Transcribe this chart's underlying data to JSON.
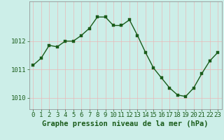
{
  "x": [
    0,
    1,
    2,
    3,
    4,
    5,
    6,
    7,
    8,
    9,
    10,
    11,
    12,
    13,
    14,
    15,
    16,
    17,
    18,
    19,
    20,
    21,
    22,
    23
  ],
  "y": [
    1011.15,
    1011.4,
    1011.85,
    1011.8,
    1012.0,
    1012.0,
    1012.2,
    1012.45,
    1012.85,
    1012.85,
    1012.55,
    1012.55,
    1012.75,
    1012.2,
    1011.6,
    1011.05,
    1010.7,
    1010.35,
    1010.1,
    1010.05,
    1010.35,
    1010.85,
    1011.3,
    1011.6
  ],
  "bg_color": "#cceee8",
  "grid_color": "#e8b8b8",
  "line_color": "#1a5c1a",
  "marker_color": "#1a5c1a",
  "xlabel": "Graphe pression niveau de la mer (hPa)",
  "xlabel_color": "#1a5c1a",
  "tick_label_color": "#1a5c1a",
  "spine_color": "#888888",
  "yticks": [
    1010,
    1011,
    1012
  ],
  "ylim": [
    1009.6,
    1013.4
  ],
  "xlim": [
    -0.5,
    23.5
  ],
  "xticks": [
    0,
    1,
    2,
    3,
    4,
    5,
    6,
    7,
    8,
    9,
    10,
    11,
    12,
    13,
    14,
    15,
    16,
    17,
    18,
    19,
    20,
    21,
    22,
    23
  ],
  "xlabel_fontsize": 7.5,
  "tick_fontsize": 6.5,
  "line_width": 1.0,
  "marker_size": 2.5
}
